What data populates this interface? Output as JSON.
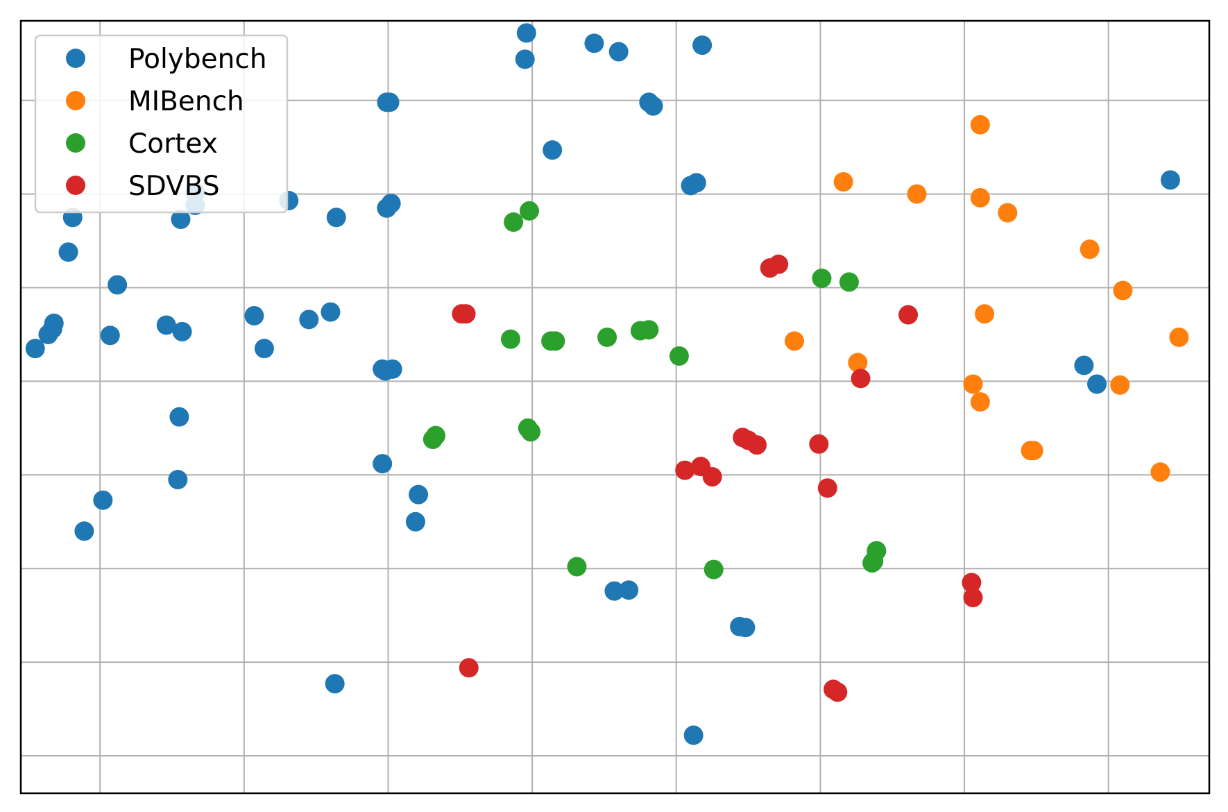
{
  "chart_data": {
    "type": "scatter",
    "xlim": [
      -5.5,
      77
    ],
    "ylim": [
      -4,
      78.5
    ],
    "grid": true,
    "tick_labels_visible": false,
    "legend_placement": "upper-left",
    "series": [
      {
        "name": "Polybench",
        "color": "#1f77b4",
        "points": [
          [
            -4.5,
            43.5
          ],
          [
            -3.6,
            45.0
          ],
          [
            -3.3,
            45.6
          ],
          [
            -3.2,
            46.2
          ],
          [
            -1.9,
            57.5
          ],
          [
            -2.2,
            53.8
          ],
          [
            1.2,
            50.3
          ],
          [
            0.7,
            44.9
          ],
          [
            0.2,
            27.3
          ],
          [
            -1.1,
            24.0
          ],
          [
            4.6,
            46.0
          ],
          [
            5.7,
            45.3
          ],
          [
            5.6,
            57.3
          ],
          [
            6.6,
            58.8
          ],
          [
            6.6,
            60.2
          ],
          [
            5.5,
            36.2
          ],
          [
            5.4,
            29.5
          ],
          [
            10.7,
            47.0
          ],
          [
            11.4,
            43.5
          ],
          [
            14.5,
            46.6
          ],
          [
            16.0,
            47.4
          ],
          [
            19.9,
            69.8
          ],
          [
            20.1,
            69.8
          ],
          [
            19.9,
            58.5
          ],
          [
            20.2,
            59.0
          ],
          [
            16.4,
            57.5
          ],
          [
            13.1,
            59.3
          ],
          [
            19.6,
            41.3
          ],
          [
            20.3,
            41.3
          ],
          [
            19.8,
            41.1
          ],
          [
            19.6,
            31.2
          ],
          [
            22.1,
            27.9
          ],
          [
            21.9,
            25.0
          ],
          [
            16.3,
            7.7
          ],
          [
            29.6,
            77.2
          ],
          [
            34.3,
            76.1
          ],
          [
            31.4,
            64.7
          ],
          [
            29.5,
            74.4
          ],
          [
            36.0,
            75.2
          ],
          [
            38.1,
            69.8
          ],
          [
            38.4,
            69.4
          ],
          [
            41.8,
            75.9
          ],
          [
            41.0,
            60.9
          ],
          [
            41.4,
            61.2
          ],
          [
            35.7,
            17.6
          ],
          [
            36.7,
            17.7
          ],
          [
            44.4,
            13.8
          ],
          [
            44.8,
            13.7
          ],
          [
            41.2,
            2.2
          ],
          [
            68.3,
            41.7
          ],
          [
            69.2,
            39.7
          ],
          [
            74.3,
            61.5
          ]
        ]
      },
      {
        "name": "MIBench",
        "color": "#ff7f0e",
        "points": [
          [
            61.1,
            67.4
          ],
          [
            56.7,
            60.0
          ],
          [
            61.1,
            59.6
          ],
          [
            63.0,
            58.0
          ],
          [
            51.6,
            61.3
          ],
          [
            68.7,
            54.1
          ],
          [
            71.0,
            49.7
          ],
          [
            61.4,
            47.2
          ],
          [
            48.2,
            44.3
          ],
          [
            52.6,
            42.0
          ],
          [
            60.6,
            39.7
          ],
          [
            61.1,
            37.8
          ],
          [
            64.6,
            32.6
          ],
          [
            64.8,
            32.6
          ],
          [
            70.8,
            39.6
          ],
          [
            73.6,
            30.3
          ],
          [
            74.9,
            44.7
          ]
        ]
      },
      {
        "name": "Cortex",
        "color": "#2ca02c",
        "points": [
          [
            29.8,
            58.2
          ],
          [
            28.7,
            57.0
          ],
          [
            28.5,
            44.5
          ],
          [
            31.3,
            44.3
          ],
          [
            31.6,
            44.3
          ],
          [
            35.2,
            44.7
          ],
          [
            37.5,
            45.4
          ],
          [
            38.1,
            45.5
          ],
          [
            40.2,
            42.7
          ],
          [
            50.1,
            51.0
          ],
          [
            52.0,
            50.6
          ],
          [
            23.3,
            34.2
          ],
          [
            23.1,
            33.8
          ],
          [
            29.7,
            35.0
          ],
          [
            29.9,
            34.6
          ],
          [
            33.1,
            20.2
          ],
          [
            42.6,
            19.9
          ],
          [
            53.9,
            21.9
          ],
          [
            53.7,
            20.8
          ],
          [
            53.6,
            20.6
          ]
        ]
      },
      {
        "name": "SDVBS",
        "color": "#d62728",
        "points": [
          [
            46.5,
            52.1
          ],
          [
            47.1,
            52.5
          ],
          [
            25.1,
            47.2
          ],
          [
            25.4,
            47.2
          ],
          [
            56.1,
            47.1
          ],
          [
            52.8,
            40.3
          ],
          [
            49.9,
            33.3
          ],
          [
            44.6,
            34.0
          ],
          [
            45.0,
            33.7
          ],
          [
            45.6,
            33.2
          ],
          [
            40.6,
            30.5
          ],
          [
            41.7,
            30.9
          ],
          [
            42.5,
            29.8
          ],
          [
            50.5,
            28.6
          ],
          [
            60.5,
            18.5
          ],
          [
            60.6,
            16.9
          ],
          [
            25.6,
            9.4
          ],
          [
            50.9,
            7.1
          ],
          [
            51.2,
            6.8
          ]
        ]
      }
    ]
  }
}
